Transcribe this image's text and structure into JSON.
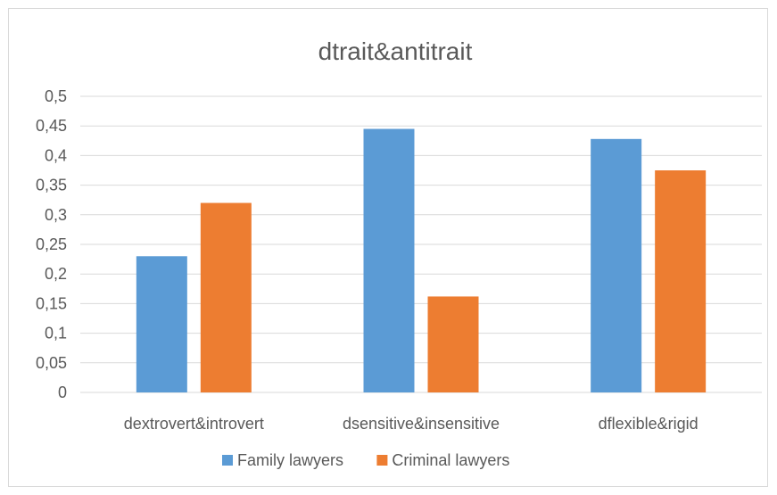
{
  "chart_data": {
    "type": "bar",
    "title": "dtrait&antitrait",
    "xlabel": "",
    "ylabel": "",
    "categories": [
      "dextrovert&introvert",
      "dsensitive&insensitive",
      "dflexible&rigid"
    ],
    "series": [
      {
        "name": "Family lawyers",
        "color": "#5b9bd5",
        "values": [
          0.23,
          0.445,
          0.428
        ]
      },
      {
        "name": "Criminal lawyers",
        "color": "#ed7d31",
        "values": [
          0.32,
          0.162,
          0.375
        ]
      }
    ],
    "ylim": [
      0,
      0.5
    ],
    "yticks": [
      "0",
      "0,05",
      "0,1",
      "0,15",
      "0,2",
      "0,25",
      "0,3",
      "0,35",
      "0,4",
      "0,45",
      "0,5"
    ],
    "grid": true,
    "legend_position": "bottom"
  }
}
